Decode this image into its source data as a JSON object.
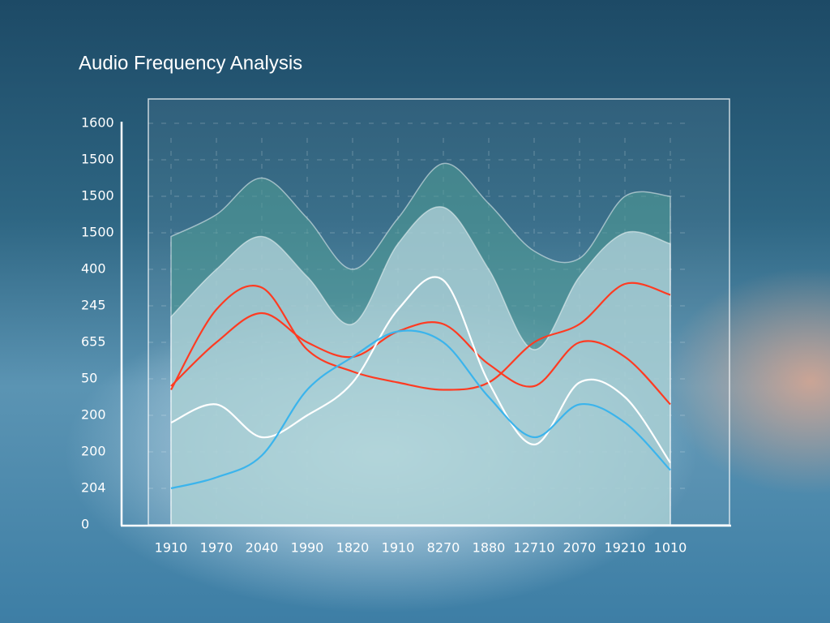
{
  "chart_data": {
    "type": "line",
    "title": "Audio Frequency Analysis",
    "categories": [
      "1910",
      "1970",
      "2040",
      "1990",
      "1820",
      "1910",
      "8270",
      "1880",
      "12710",
      "2070",
      "19210",
      "1010"
    ],
    "ylim": [
      0,
      11
    ],
    "yticks": [
      0,
      {
        "value": 1,
        "label": "204"
      },
      {
        "value": 2,
        "label": "200"
      },
      {
        "value": 3,
        "label": "200"
      },
      {
        "value": 4,
        "label": "50"
      },
      {
        "value": 5,
        "label": "655"
      },
      {
        "value": 6,
        "label": "245"
      },
      {
        "value": 7,
        "label": "400"
      },
      {
        "value": 8,
        "label": "1500"
      },
      {
        "value": 9,
        "label": "1500"
      },
      {
        "value": 10,
        "label": "1500"
      },
      {
        "value": 11,
        "label": "1600"
      }
    ],
    "grid": true,
    "series": [
      {
        "color": "#4f9a94",
        "fill": true,
        "values": [
          7.9,
          8.5,
          9.5,
          8.4,
          7.0,
          8.4,
          9.9,
          8.8,
          7.5,
          7.3,
          9.0,
          9.0
        ]
      },
      {
        "color": "#cfe6ee",
        "fill": true,
        "values": [
          5.7,
          7.0,
          7.9,
          6.8,
          5.5,
          7.7,
          8.7,
          7.0,
          4.8,
          6.8,
          8.0,
          7.7
        ]
      },
      {
        "color": "#ff3b22",
        "fill": false,
        "values": [
          3.7,
          5.9,
          6.5,
          4.8,
          4.2,
          3.9,
          3.7,
          3.9,
          5.0,
          5.5,
          6.6,
          6.3
        ]
      },
      {
        "color": "#ff3b22",
        "fill": false,
        "values": [
          3.8,
          5.0,
          5.8,
          5.0,
          4.6,
          5.3,
          5.5,
          4.4,
          3.8,
          5.0,
          4.6,
          3.3
        ]
      },
      {
        "color": "#ffffff",
        "fill": false,
        "values": [
          2.8,
          3.3,
          2.4,
          3.0,
          3.9,
          5.9,
          6.7,
          3.9,
          2.2,
          3.9,
          3.5,
          1.7
        ]
      },
      {
        "color": "#3bb4ec",
        "fill": false,
        "values": [
          1.0,
          1.3,
          1.9,
          3.7,
          4.6,
          5.3,
          5.0,
          3.5,
          2.4,
          3.3,
          2.8,
          1.5
        ]
      }
    ]
  }
}
